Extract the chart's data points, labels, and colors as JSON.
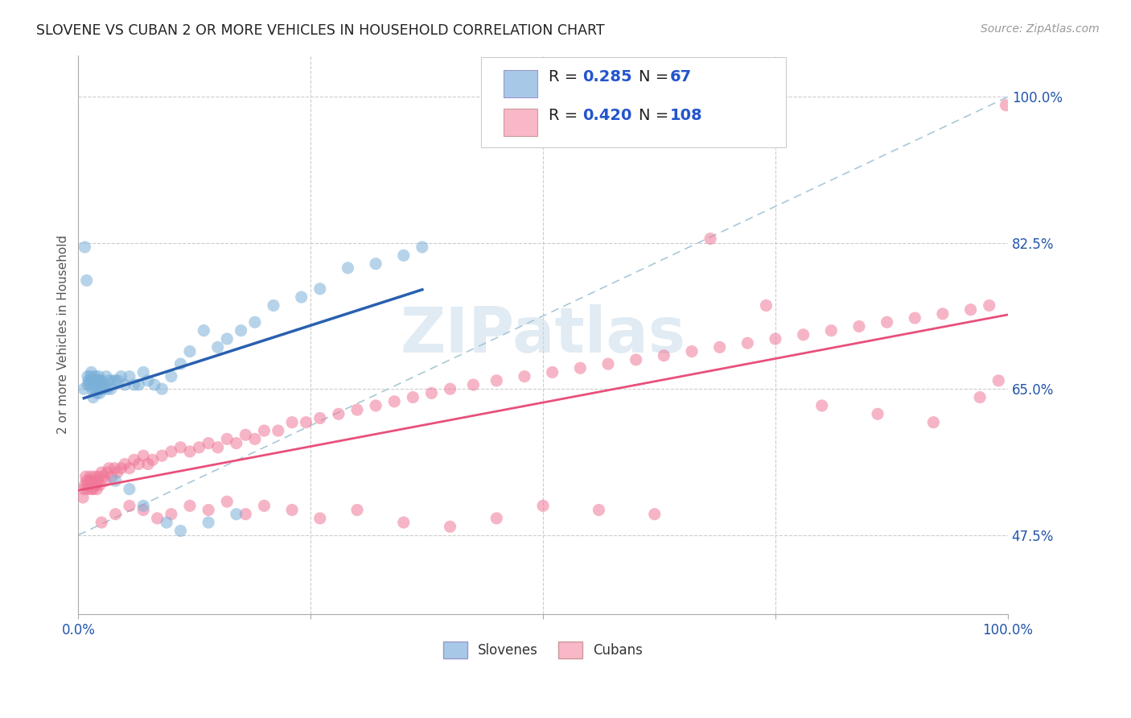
{
  "title": "SLOVENE VS CUBAN 2 OR MORE VEHICLES IN HOUSEHOLD CORRELATION CHART",
  "source": "Source: ZipAtlas.com",
  "ylabel": "2 or more Vehicles in Household",
  "ytick_labels": [
    "47.5%",
    "65.0%",
    "82.5%",
    "100.0%"
  ],
  "ytick_values": [
    0.475,
    0.65,
    0.825,
    1.0
  ],
  "legend_entries": [
    {
      "label": "Slovenes",
      "R": "0.285",
      "N": "67",
      "color": "#a8c8e8",
      "dot_color": "#7ab0d8"
    },
    {
      "label": "Cubans",
      "R": "0.420",
      "N": "108",
      "color": "#f8b8c8",
      "dot_color": "#f07898"
    }
  ],
  "slovene_line_color": "#2860b0",
  "cuban_line_color": "#e8507a",
  "dashed_line_color": "#a8c8d8",
  "watermark": "ZIPatlas",
  "background_color": "#ffffff",
  "slovene_x": [
    0.006,
    0.007,
    0.009,
    0.01,
    0.01,
    0.011,
    0.012,
    0.013,
    0.013,
    0.014,
    0.015,
    0.015,
    0.016,
    0.016,
    0.017,
    0.018,
    0.018,
    0.019,
    0.02,
    0.02,
    0.021,
    0.022,
    0.023,
    0.023,
    0.024,
    0.025,
    0.026,
    0.027,
    0.028,
    0.03,
    0.031,
    0.033,
    0.035,
    0.037,
    0.04,
    0.043,
    0.046,
    0.05,
    0.055,
    0.06,
    0.065,
    0.07,
    0.075,
    0.082,
    0.09,
    0.1,
    0.11,
    0.12,
    0.135,
    0.15,
    0.16,
    0.175,
    0.19,
    0.21,
    0.24,
    0.26,
    0.29,
    0.32,
    0.35,
    0.37,
    0.04,
    0.055,
    0.07,
    0.095,
    0.11,
    0.14,
    0.17
  ],
  "slovene_y": [
    0.65,
    0.82,
    0.78,
    0.655,
    0.665,
    0.66,
    0.655,
    0.66,
    0.665,
    0.67,
    0.65,
    0.66,
    0.64,
    0.66,
    0.66,
    0.65,
    0.665,
    0.655,
    0.645,
    0.66,
    0.66,
    0.665,
    0.645,
    0.66,
    0.65,
    0.66,
    0.655,
    0.65,
    0.655,
    0.665,
    0.65,
    0.66,
    0.65,
    0.66,
    0.66,
    0.66,
    0.665,
    0.655,
    0.665,
    0.655,
    0.655,
    0.67,
    0.66,
    0.655,
    0.65,
    0.665,
    0.68,
    0.695,
    0.72,
    0.7,
    0.71,
    0.72,
    0.73,
    0.75,
    0.76,
    0.77,
    0.795,
    0.8,
    0.81,
    0.82,
    0.54,
    0.53,
    0.51,
    0.49,
    0.48,
    0.49,
    0.5
  ],
  "cuban_x": [
    0.005,
    0.006,
    0.007,
    0.008,
    0.009,
    0.01,
    0.011,
    0.012,
    0.013,
    0.014,
    0.015,
    0.016,
    0.017,
    0.018,
    0.019,
    0.02,
    0.021,
    0.022,
    0.023,
    0.025,
    0.027,
    0.029,
    0.031,
    0.033,
    0.036,
    0.039,
    0.042,
    0.046,
    0.05,
    0.055,
    0.06,
    0.065,
    0.07,
    0.075,
    0.08,
    0.09,
    0.1,
    0.11,
    0.12,
    0.13,
    0.14,
    0.15,
    0.16,
    0.17,
    0.18,
    0.19,
    0.2,
    0.215,
    0.23,
    0.245,
    0.26,
    0.28,
    0.3,
    0.32,
    0.34,
    0.36,
    0.38,
    0.4,
    0.425,
    0.45,
    0.48,
    0.51,
    0.54,
    0.57,
    0.6,
    0.63,
    0.66,
    0.69,
    0.72,
    0.75,
    0.78,
    0.81,
    0.84,
    0.87,
    0.9,
    0.93,
    0.96,
    0.98,
    0.025,
    0.04,
    0.055,
    0.07,
    0.085,
    0.1,
    0.12,
    0.14,
    0.16,
    0.18,
    0.2,
    0.23,
    0.26,
    0.3,
    0.35,
    0.4,
    0.45,
    0.5,
    0.56,
    0.62,
    0.68,
    0.74,
    0.8,
    0.86,
    0.92,
    0.97,
    0.99,
    0.998
  ],
  "cuban_y": [
    0.52,
    0.53,
    0.535,
    0.545,
    0.54,
    0.53,
    0.535,
    0.54,
    0.545,
    0.53,
    0.54,
    0.53,
    0.535,
    0.545,
    0.535,
    0.53,
    0.54,
    0.545,
    0.535,
    0.55,
    0.545,
    0.54,
    0.55,
    0.555,
    0.545,
    0.555,
    0.55,
    0.555,
    0.56,
    0.555,
    0.565,
    0.56,
    0.57,
    0.56,
    0.565,
    0.57,
    0.575,
    0.58,
    0.575,
    0.58,
    0.585,
    0.58,
    0.59,
    0.585,
    0.595,
    0.59,
    0.6,
    0.6,
    0.61,
    0.61,
    0.615,
    0.62,
    0.625,
    0.63,
    0.635,
    0.64,
    0.645,
    0.65,
    0.655,
    0.66,
    0.665,
    0.67,
    0.675,
    0.68,
    0.685,
    0.69,
    0.695,
    0.7,
    0.705,
    0.71,
    0.715,
    0.72,
    0.725,
    0.73,
    0.735,
    0.74,
    0.745,
    0.75,
    0.49,
    0.5,
    0.51,
    0.505,
    0.495,
    0.5,
    0.51,
    0.505,
    0.515,
    0.5,
    0.51,
    0.505,
    0.495,
    0.505,
    0.49,
    0.485,
    0.495,
    0.51,
    0.505,
    0.5,
    0.83,
    0.75,
    0.63,
    0.62,
    0.61,
    0.64,
    0.66,
    0.99
  ],
  "xlim": [
    0.0,
    1.0
  ],
  "ylim": [
    0.38,
    1.05
  ],
  "xtick_positions": [
    0.0,
    0.25,
    0.5,
    0.75,
    1.0
  ],
  "xtick_labels_show": [
    "0.0%",
    "",
    "",
    "",
    "100.0%"
  ]
}
